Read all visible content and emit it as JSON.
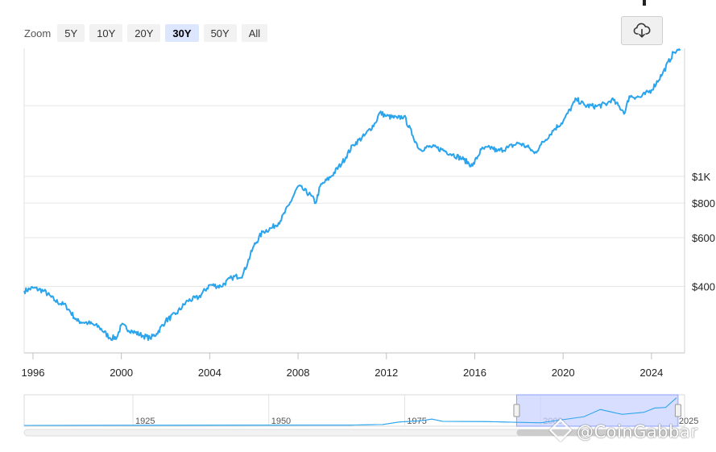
{
  "toolbar": {
    "zoom_label": "Zoom",
    "buttons": [
      "5Y",
      "10Y",
      "20Y",
      "30Y",
      "50Y",
      "All"
    ],
    "active": "30Y",
    "export_icon": "cloud-download-icon"
  },
  "watermark": {
    "text": "@CoinGabbar",
    "icon": "coingabbar-logo-icon"
  },
  "colors": {
    "line": "#2aa4ec",
    "navigator_fill": "#c9d3ff",
    "grid": "#e6e6e6"
  },
  "chart_data": {
    "type": "line",
    "title": "",
    "xlabel": "",
    "ylabel": "",
    "y_scale": "log",
    "xlim": [
      1995.6,
      2025.5
    ],
    "ylim": [
      230,
      2900
    ],
    "x_ticks": [
      {
        "value": 1996,
        "label": "1996"
      },
      {
        "value": 2000,
        "label": "2000"
      },
      {
        "value": 2004,
        "label": "2004"
      },
      {
        "value": 2008,
        "label": "2008"
      },
      {
        "value": 2012,
        "label": "2012"
      },
      {
        "value": 2016,
        "label": "2016"
      },
      {
        "value": 2020,
        "label": "2020"
      },
      {
        "value": 2024,
        "label": "2024"
      }
    ],
    "y_ticks": [
      {
        "value": 400,
        "label": "$400"
      },
      {
        "value": 600,
        "label": "$600"
      },
      {
        "value": 800,
        "label": "$800"
      },
      {
        "value": 1000,
        "label": "$1K"
      },
      {
        "value": 1800,
        "label": ""
      }
    ],
    "series": [
      {
        "x": [
          1995.6,
          1996.0,
          1996.5,
          1997.0,
          1997.5,
          1998.0,
          1998.5,
          1999.0,
          1999.5,
          1999.8,
          2000.0,
          2000.5,
          2001.0,
          2001.3,
          2001.6,
          2002.0,
          2002.5,
          2003.0,
          2003.5,
          2004.0,
          2004.5,
          2005.0,
          2005.5,
          2006.0,
          2006.4,
          2006.8,
          2007.2,
          2007.6,
          2008.0,
          2008.2,
          2008.6,
          2008.8,
          2009.0,
          2009.5,
          2010.0,
          2010.5,
          2011.0,
          2011.5,
          2011.7,
          2012.0,
          2012.5,
          2012.8,
          2013.2,
          2013.5,
          2014.0,
          2014.5,
          2015.0,
          2015.5,
          2015.9,
          2016.3,
          2016.8,
          2017.0,
          2017.5,
          2018.0,
          2018.5,
          2018.7,
          2019.0,
          2019.6,
          2020.0,
          2020.6,
          2021.0,
          2021.5,
          2022.0,
          2022.2,
          2022.8,
          2023.0,
          2023.5,
          2024.0,
          2024.5,
          2025.0,
          2025.3
        ],
        "y": [
          385,
          395,
          385,
          355,
          340,
          300,
          295,
          285,
          260,
          262,
          290,
          275,
          265,
          260,
          270,
          300,
          320,
          355,
          365,
          405,
          400,
          430,
          440,
          560,
          630,
          650,
          690,
          790,
          920,
          900,
          850,
          800,
          920,
          1000,
          1120,
          1300,
          1400,
          1560,
          1700,
          1650,
          1620,
          1650,
          1400,
          1250,
          1280,
          1250,
          1200,
          1150,
          1090,
          1250,
          1270,
          1230,
          1270,
          1320,
          1260,
          1210,
          1300,
          1480,
          1580,
          1900,
          1800,
          1790,
          1830,
          1900,
          1700,
          1950,
          1930,
          2050,
          2350,
          2800,
          2850
        ]
      }
    ],
    "navigator": {
      "x_ticks": [
        {
          "value": 1925,
          "label": "1925"
        },
        {
          "value": 1950,
          "label": "1950"
        },
        {
          "value": 1975,
          "label": "1975"
        },
        {
          "value": 2000,
          "label": "2000"
        },
        {
          "value": 2025,
          "label": "2025"
        }
      ],
      "selected_range": [
        1995.6,
        2025.3
      ]
    }
  }
}
